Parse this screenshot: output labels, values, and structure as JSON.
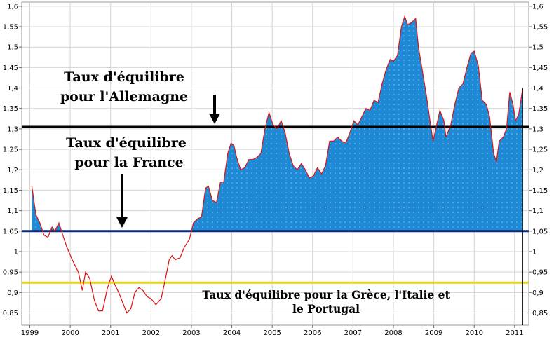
{
  "chart_data": {
    "type": "line",
    "title": "",
    "xlabel": "",
    "ylabel": "",
    "x_ticks": [
      "1999",
      "2000",
      "2001",
      "2002",
      "2003",
      "2004",
      "2005",
      "2006",
      "2007",
      "2008",
      "2009",
      "2010",
      "2011"
    ],
    "y_ticks": [
      "0,85",
      "0,9",
      "0,95",
      "1",
      "1,05",
      "1,1",
      "1,15",
      "1,2",
      "1,25",
      "1,3",
      "1,35",
      "1,4",
      "1,45",
      "1,5",
      "1,55",
      "1,6"
    ],
    "xlim": [
      1998.8,
      2011.35
    ],
    "ylim": [
      0.82,
      1.61
    ],
    "grid": true,
    "reference_lines": [
      {
        "value": 1.305,
        "color": "#000000"
      },
      {
        "value": 1.05,
        "color": "#0a2a78"
      },
      {
        "value": 0.924,
        "color": "#e5d41a"
      }
    ],
    "fill_above": {
      "baseline": 1.05,
      "color": "#1e8ad6"
    },
    "series_color": "#e01010",
    "series": [
      {
        "values": [
          [
            1999.05,
            1.16
          ],
          [
            1999.15,
            1.09
          ],
          [
            1999.25,
            1.07
          ],
          [
            1999.35,
            1.04
          ],
          [
            1999.45,
            1.035
          ],
          [
            1999.55,
            1.06
          ],
          [
            1999.62,
            1.05
          ],
          [
            1999.72,
            1.07
          ],
          [
            1999.85,
            1.03
          ],
          [
            1999.92,
            1.01
          ],
          [
            2000.05,
            0.98
          ],
          [
            2000.2,
            0.95
          ],
          [
            2000.3,
            0.905
          ],
          [
            2000.38,
            0.95
          ],
          [
            2000.48,
            0.935
          ],
          [
            2000.6,
            0.88
          ],
          [
            2000.7,
            0.855
          ],
          [
            2000.8,
            0.855
          ],
          [
            2000.92,
            0.91
          ],
          [
            2001.02,
            0.94
          ],
          [
            2001.1,
            0.92
          ],
          [
            2001.2,
            0.9
          ],
          [
            2001.3,
            0.875
          ],
          [
            2001.4,
            0.85
          ],
          [
            2001.5,
            0.86
          ],
          [
            2001.6,
            0.9
          ],
          [
            2001.7,
            0.912
          ],
          [
            2001.8,
            0.905
          ],
          [
            2001.9,
            0.89
          ],
          [
            2002.0,
            0.885
          ],
          [
            2002.12,
            0.87
          ],
          [
            2002.25,
            0.885
          ],
          [
            2002.35,
            0.93
          ],
          [
            2002.45,
            0.98
          ],
          [
            2002.52,
            0.99
          ],
          [
            2002.6,
            0.98
          ],
          [
            2002.72,
            0.985
          ],
          [
            2002.82,
            1.01
          ],
          [
            2002.95,
            1.03
          ],
          [
            2003.05,
            1.07
          ],
          [
            2003.15,
            1.08
          ],
          [
            2003.25,
            1.085
          ],
          [
            2003.35,
            1.155
          ],
          [
            2003.42,
            1.16
          ],
          [
            2003.52,
            1.125
          ],
          [
            2003.62,
            1.12
          ],
          [
            2003.72,
            1.17
          ],
          [
            2003.8,
            1.17
          ],
          [
            2003.9,
            1.24
          ],
          [
            2003.98,
            1.265
          ],
          [
            2004.05,
            1.26
          ],
          [
            2004.12,
            1.23
          ],
          [
            2004.22,
            1.2
          ],
          [
            2004.32,
            1.205
          ],
          [
            2004.42,
            1.225
          ],
          [
            2004.52,
            1.225
          ],
          [
            2004.62,
            1.23
          ],
          [
            2004.72,
            1.24
          ],
          [
            2004.82,
            1.3
          ],
          [
            2004.92,
            1.34
          ],
          [
            2005.02,
            1.31
          ],
          [
            2005.12,
            1.3
          ],
          [
            2005.22,
            1.32
          ],
          [
            2005.32,
            1.29
          ],
          [
            2005.42,
            1.24
          ],
          [
            2005.52,
            1.21
          ],
          [
            2005.62,
            1.2
          ],
          [
            2005.72,
            1.215
          ],
          [
            2005.82,
            1.2
          ],
          [
            2005.92,
            1.18
          ],
          [
            2006.02,
            1.185
          ],
          [
            2006.12,
            1.205
          ],
          [
            2006.22,
            1.19
          ],
          [
            2006.32,
            1.21
          ],
          [
            2006.42,
            1.27
          ],
          [
            2006.52,
            1.27
          ],
          [
            2006.62,
            1.28
          ],
          [
            2006.72,
            1.27
          ],
          [
            2006.82,
            1.265
          ],
          [
            2006.92,
            1.29
          ],
          [
            2007.02,
            1.32
          ],
          [
            2007.12,
            1.31
          ],
          [
            2007.22,
            1.33
          ],
          [
            2007.32,
            1.35
          ],
          [
            2007.42,
            1.345
          ],
          [
            2007.52,
            1.37
          ],
          [
            2007.62,
            1.365
          ],
          [
            2007.72,
            1.41
          ],
          [
            2007.82,
            1.445
          ],
          [
            2007.92,
            1.47
          ],
          [
            2008.0,
            1.465
          ],
          [
            2008.1,
            1.48
          ],
          [
            2008.2,
            1.55
          ],
          [
            2008.28,
            1.575
          ],
          [
            2008.35,
            1.555
          ],
          [
            2008.45,
            1.56
          ],
          [
            2008.55,
            1.57
          ],
          [
            2008.62,
            1.5
          ],
          [
            2008.72,
            1.44
          ],
          [
            2008.82,
            1.38
          ],
          [
            2008.92,
            1.31
          ],
          [
            2008.98,
            1.27
          ],
          [
            2009.05,
            1.3
          ],
          [
            2009.15,
            1.345
          ],
          [
            2009.25,
            1.32
          ],
          [
            2009.3,
            1.28
          ],
          [
            2009.42,
            1.31
          ],
          [
            2009.52,
            1.36
          ],
          [
            2009.62,
            1.4
          ],
          [
            2009.72,
            1.41
          ],
          [
            2009.82,
            1.45
          ],
          [
            2009.92,
            1.485
          ],
          [
            2010.0,
            1.49
          ],
          [
            2010.1,
            1.455
          ],
          [
            2010.2,
            1.37
          ],
          [
            2010.3,
            1.36
          ],
          [
            2010.38,
            1.33
          ],
          [
            2010.48,
            1.24
          ],
          [
            2010.55,
            1.22
          ],
          [
            2010.62,
            1.27
          ],
          [
            2010.72,
            1.28
          ],
          [
            2010.8,
            1.3
          ],
          [
            2010.88,
            1.39
          ],
          [
            2010.96,
            1.36
          ],
          [
            2011.02,
            1.32
          ],
          [
            2011.1,
            1.335
          ],
          [
            2011.2,
            1.4
          ]
        ]
      }
    ],
    "annotations": {
      "germany": [
        "Taux d'équilibre",
        "pour l'Allemagne"
      ],
      "france": [
        "Taux d'équilibre",
        "pour la France"
      ],
      "southern": [
        "Taux d'équilibre pour la Grèce, l'Italie et",
        "le Portugal"
      ]
    }
  }
}
